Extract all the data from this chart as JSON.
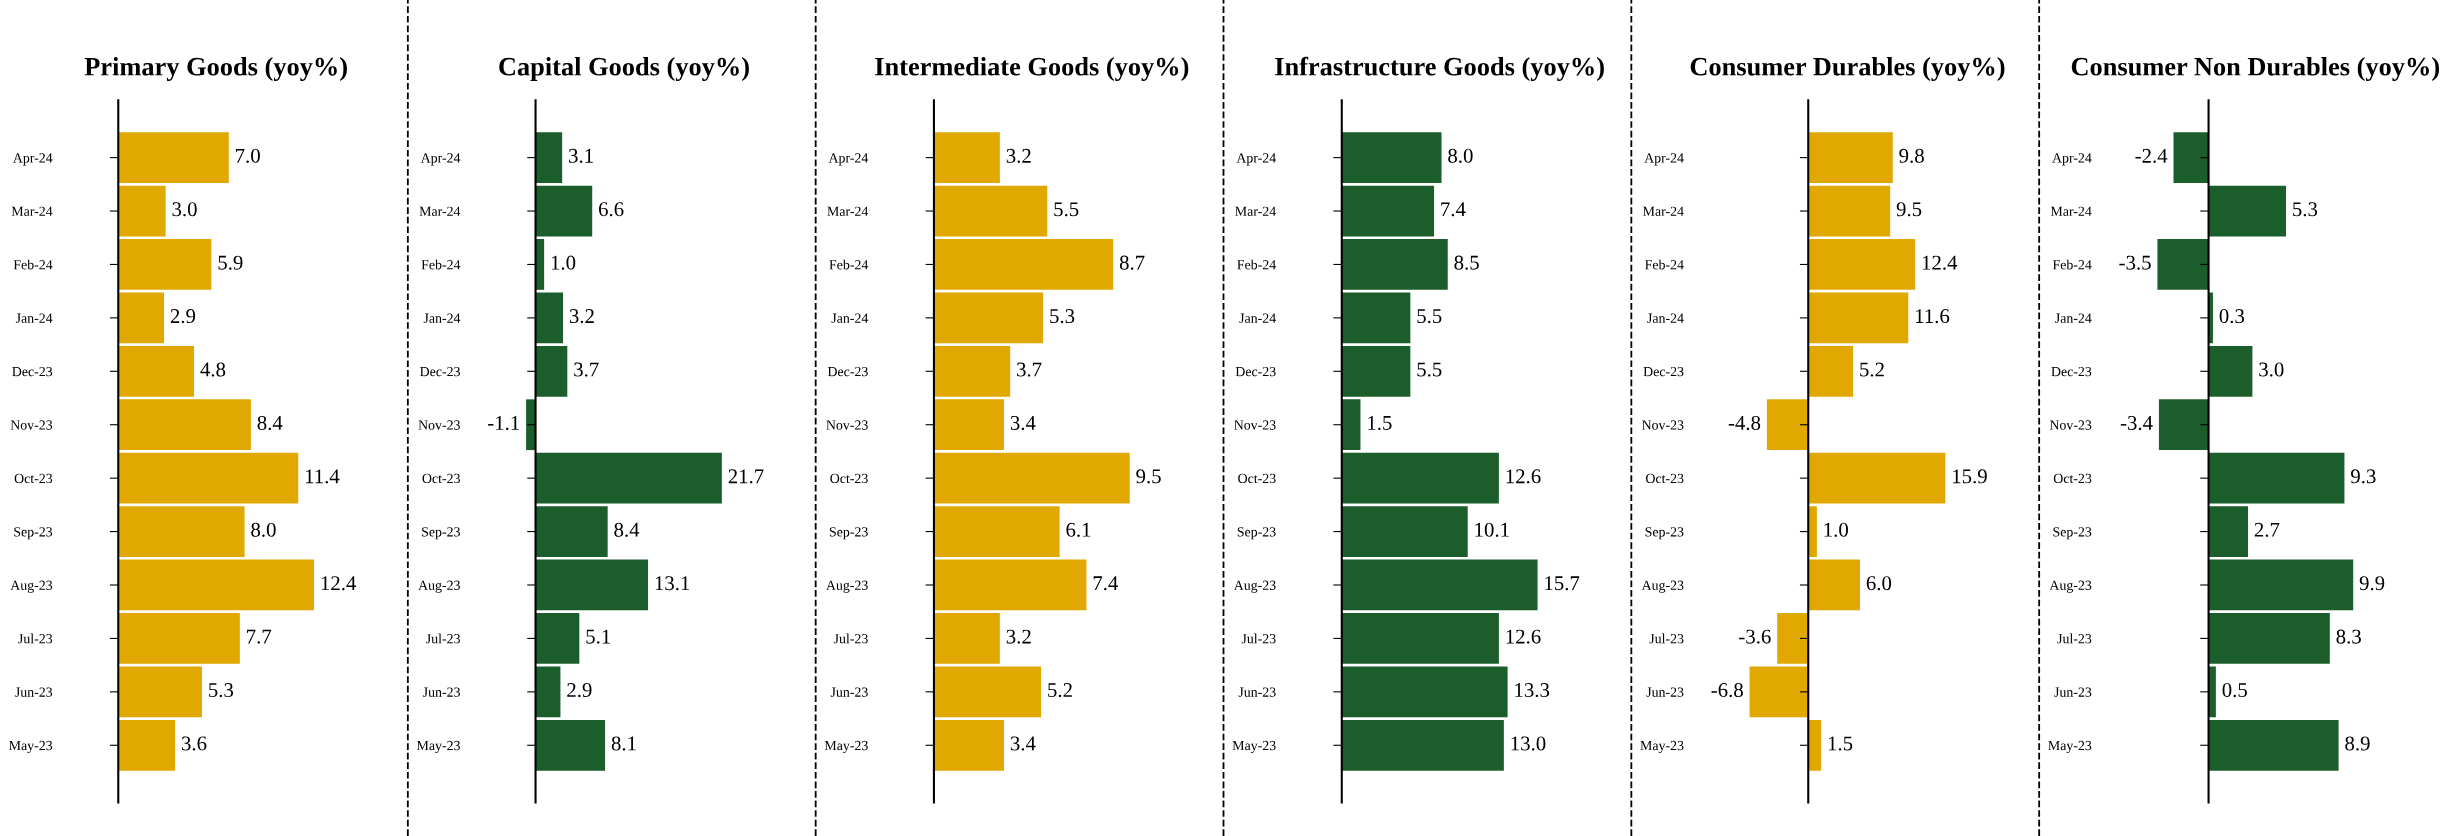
{
  "chart_data": [
    {
      "type": "bar",
      "orientation": "horizontal",
      "title": "Primary Goods (yoy%)",
      "categories": [
        "Apr-24",
        "Mar-24",
        "Feb-24",
        "Jan-24",
        "Dec-23",
        "Nov-23",
        "Oct-23",
        "Sep-23",
        "Aug-23",
        "Jul-23",
        "Jun-23",
        "May-23"
      ],
      "values": [
        7.0,
        3.0,
        5.9,
        2.9,
        4.8,
        8.4,
        11.4,
        8.0,
        12.4,
        7.7,
        5.3,
        3.6
      ],
      "value_labels": [
        "7.0",
        "3.0",
        "5.9",
        "2.9",
        "4.8",
        "8.4",
        "11.4",
        "8.0",
        "12.4",
        "7.7",
        "5.3",
        "3.6"
      ],
      "color": "#e0a800"
    },
    {
      "type": "bar",
      "orientation": "horizontal",
      "title": "Capital Goods (yoy%)",
      "categories": [
        "Apr-24",
        "Mar-24",
        "Feb-24",
        "Jan-24",
        "Dec-23",
        "Nov-23",
        "Oct-23",
        "Sep-23",
        "Aug-23",
        "Jul-23",
        "Jun-23",
        "May-23"
      ],
      "values": [
        3.1,
        6.6,
        1.0,
        3.2,
        3.7,
        -1.1,
        21.7,
        8.4,
        13.1,
        5.1,
        2.9,
        8.1
      ],
      "value_labels": [
        "3.1",
        "6.6",
        "1.0",
        "3.2",
        "3.7",
        "-1.1",
        "21.7",
        "8.4",
        "13.1",
        "5.1",
        "2.9",
        "8.1"
      ],
      "color": "#1b5e2b"
    },
    {
      "type": "bar",
      "orientation": "horizontal",
      "title": "Intermediate Goods (yoy%)",
      "categories": [
        "Apr-24",
        "Mar-24",
        "Feb-24",
        "Jan-24",
        "Dec-23",
        "Nov-23",
        "Oct-23",
        "Sep-23",
        "Aug-23",
        "Jul-23",
        "Jun-23",
        "May-23"
      ],
      "values": [
        3.2,
        5.5,
        8.7,
        5.3,
        3.7,
        3.4,
        9.5,
        6.1,
        7.4,
        3.2,
        5.2,
        3.4
      ],
      "value_labels": [
        "3.2",
        "5.5",
        "8.7",
        "5.3",
        "3.7",
        "3.4",
        "9.5",
        "6.1",
        "7.4",
        "3.2",
        "5.2",
        "3.4"
      ],
      "color": "#e0a800"
    },
    {
      "type": "bar",
      "orientation": "horizontal",
      "title": "Infrastructure Goods (yoy%)",
      "categories": [
        "Apr-24",
        "Mar-24",
        "Feb-24",
        "Jan-24",
        "Dec-23",
        "Nov-23",
        "Oct-23",
        "Sep-23",
        "Aug-23",
        "Jul-23",
        "Jun-23",
        "May-23"
      ],
      "values": [
        8.0,
        7.4,
        8.5,
        5.5,
        5.5,
        1.5,
        12.6,
        10.1,
        15.7,
        12.6,
        13.3,
        13.0
      ],
      "value_labels": [
        "8.0",
        "7.4",
        "8.5",
        "5.5",
        "5.5",
        "1.5",
        "12.6",
        "10.1",
        "15.7",
        "12.6",
        "13.3",
        "13.0"
      ],
      "color": "#1b5e2b"
    },
    {
      "type": "bar",
      "orientation": "horizontal",
      "title": "Consumer Durables (yoy%)",
      "categories": [
        "Apr-24",
        "Mar-24",
        "Feb-24",
        "Jan-24",
        "Dec-23",
        "Nov-23",
        "Oct-23",
        "Sep-23",
        "Aug-23",
        "Jul-23",
        "Jun-23",
        "May-23"
      ],
      "values": [
        9.8,
        9.5,
        12.4,
        11.6,
        5.2,
        -4.8,
        15.9,
        1.0,
        6.0,
        -3.6,
        -6.8,
        1.5
      ],
      "value_labels": [
        "9.8",
        "9.5",
        "12.4",
        "11.6",
        "5.2",
        "-4.8",
        "15.9",
        "1.0",
        "6.0",
        "-3.6",
        "-6.8",
        "1.5"
      ],
      "color": "#e0a800"
    },
    {
      "type": "bar",
      "orientation": "horizontal",
      "title": "Consumer Non Durables (yoy%)",
      "categories": [
        "Apr-24",
        "Mar-24",
        "Feb-24",
        "Jan-24",
        "Dec-23",
        "Nov-23",
        "Oct-23",
        "Sep-23",
        "Aug-23",
        "Jul-23",
        "Jun-23",
        "May-23"
      ],
      "values": [
        -2.4,
        5.3,
        -3.5,
        0.3,
        3.0,
        -3.4,
        9.3,
        2.7,
        9.9,
        8.3,
        0.5,
        8.9
      ],
      "value_labels": [
        "-2.4",
        "5.3",
        "-3.5",
        "0.3",
        "3.0",
        "-3.4",
        "9.3",
        "2.7",
        "9.9",
        "8.3",
        "0.5",
        "8.9"
      ],
      "color": "#1b5e2b"
    }
  ]
}
